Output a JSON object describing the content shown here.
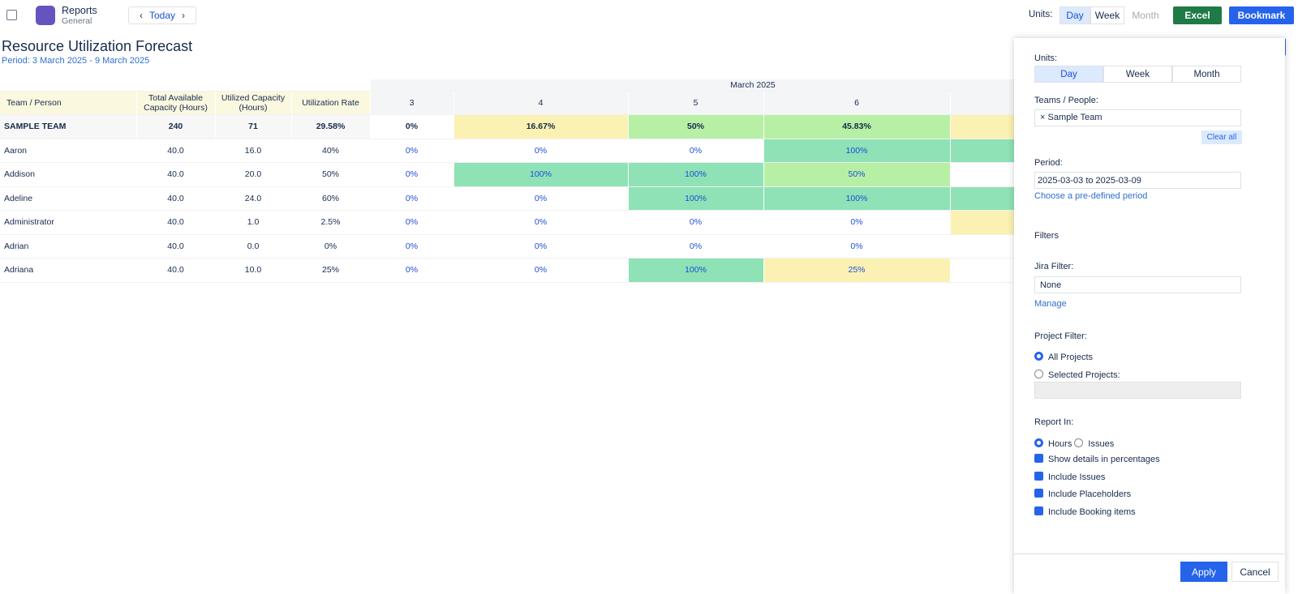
{
  "toolbar": {
    "app_name": "Reports",
    "app_sub": "General",
    "today": "Today",
    "units_label": "Units:",
    "units": [
      "Day",
      "Week",
      "Month"
    ],
    "excel": "Excel",
    "bookmark": "Bookmark"
  },
  "report": {
    "title": "Resource Utilization Forecast",
    "period": "Period: 3 March 2025 - 9 March 2025"
  },
  "table": {
    "group": "March 2025",
    "columns": [
      "Team / Person",
      "Total Available Capacity (Hours)",
      "Utilized Capacity (Hours)",
      "Utilization Rate",
      "3",
      "4",
      "5",
      "6"
    ],
    "rows": [
      [
        "SAMPLE TEAM",
        "240",
        "71",
        "29.58%",
        "0%",
        "16.67%",
        "50%",
        "45.83%"
      ],
      [
        "Aaron",
        "40.0",
        "16.0",
        "40%",
        "0%",
        "0%",
        "0%",
        "100%"
      ],
      [
        "Addison",
        "40.0",
        "20.0",
        "50%",
        "0%",
        "100%",
        "100%",
        "50%"
      ],
      [
        "Adeline",
        "40.0",
        "24.0",
        "60%",
        "0%",
        "0%",
        "100%",
        "100%"
      ],
      [
        "Administrator",
        "40.0",
        "1.0",
        "2.5%",
        "0%",
        "0%",
        "0%",
        "0%"
      ],
      [
        "Adrian",
        "40.0",
        "0.0",
        "0%",
        "0%",
        "0%",
        "0%",
        "0%"
      ],
      [
        "Adriana",
        "40.0",
        "10.0",
        "25%",
        "0%",
        "0%",
        "100%",
        "25%"
      ]
    ]
  },
  "panel": {
    "units_label": "Units:",
    "units": [
      "Day",
      "Week",
      "Month"
    ],
    "teams_label": "Teams / People:",
    "team_tag": "Sample Team",
    "clear_all": "Clear all",
    "period_label": "Period:",
    "period_value": "2025-03-03 to 2025-03-09",
    "predefined": "Choose a pre-defined period",
    "filters": "Filters",
    "jira_label": "Jira Filter:",
    "jira_value": "None",
    "manage": "Manage",
    "project_label": "Project Filter:",
    "project_options": [
      "All Projects",
      "Selected Projects:"
    ],
    "report_in": "Report In:",
    "report_options": [
      "Hours",
      "Issues"
    ],
    "checkboxes": [
      "Show details in percentages",
      "Include Issues",
      "Include Placeholders",
      "Include Booking items"
    ],
    "apply": "Apply",
    "cancel": "Cancel"
  }
}
